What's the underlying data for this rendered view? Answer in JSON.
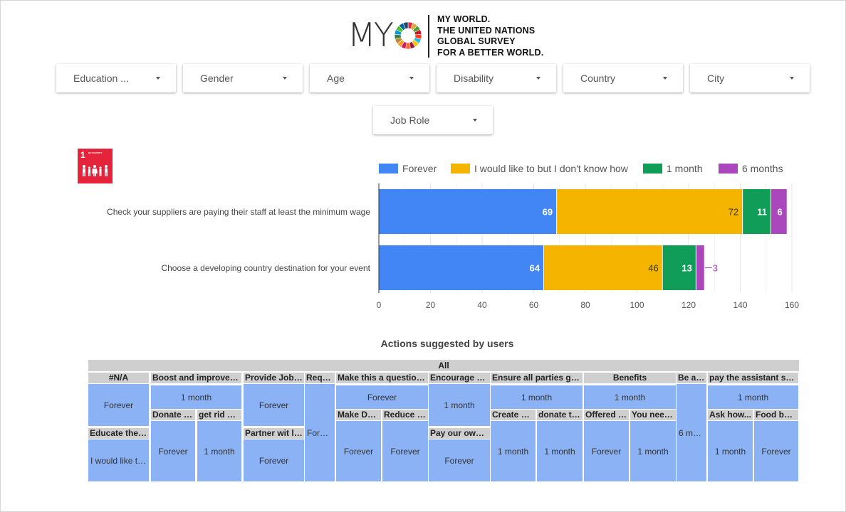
{
  "logo": {
    "wordmark": "MY",
    "tagline": [
      "MY WORLD.",
      "THE UNITED NATIONS",
      "GLOBAL SURVEY",
      "FOR A BETTER WORLD."
    ]
  },
  "filters": [
    {
      "label": "Education ..."
    },
    {
      "label": "Gender"
    },
    {
      "label": "Age"
    },
    {
      "label": "Disability"
    },
    {
      "label": "Country"
    },
    {
      "label": "City"
    },
    {
      "label": "Job Role"
    }
  ],
  "sdg": {
    "number": "1",
    "sub": "NO POVERTY",
    "color": "#e5243b"
  },
  "chart_data": {
    "type": "bar",
    "orientation": "horizontal",
    "stacked": true,
    "categories": [
      "Check your suppliers are paying their staff at least the minimum wage",
      "Choose a developing country destination for your event"
    ],
    "series": [
      {
        "name": "Forever",
        "color": "#4285f4",
        "values": [
          69,
          64
        ]
      },
      {
        "name": "I would like to but I don't know how",
        "color": "#f4b400",
        "values": [
          72,
          46
        ]
      },
      {
        "name": "1 month",
        "color": "#0f9d58",
        "values": [
          11,
          13
        ]
      },
      {
        "name": "6 months",
        "color": "#ab47bc",
        "values": [
          6,
          3
        ]
      }
    ],
    "xlim": [
      0,
      160
    ],
    "xticks": [
      0,
      20,
      40,
      60,
      80,
      100,
      120,
      140,
      160
    ],
    "legend": "top",
    "grid": true
  },
  "table": {
    "title": "Actions suggested by users",
    "root": "All",
    "nodes": [
      {
        "label": "#N/A",
        "kind": "h"
      },
      {
        "label": "Forever",
        "kind": "c"
      },
      {
        "label": "Educate the e...",
        "kind": "h"
      },
      {
        "label": "I would like to...",
        "kind": "c"
      },
      {
        "label": "Boost and improve Ed...",
        "kind": "h"
      },
      {
        "label": "1 month",
        "kind": "c"
      },
      {
        "label": "Donate m...",
        "kind": "h"
      },
      {
        "label": "Forever",
        "kind": "c"
      },
      {
        "label": "get rid of...",
        "kind": "h"
      },
      {
        "label": "1 month",
        "kind": "c"
      },
      {
        "label": "Provide Job o...",
        "kind": "h"
      },
      {
        "label": "Forever",
        "kind": "c"
      },
      {
        "label": "Partner wit loc...",
        "kind": "h"
      },
      {
        "label": "Forever",
        "kind": "c"
      },
      {
        "label": "Reque...",
        "kind": "h"
      },
      {
        "label": "Forever",
        "kind": "c"
      },
      {
        "label": "Make this a question w...",
        "kind": "h"
      },
      {
        "label": "Forever",
        "kind": "c"
      },
      {
        "label": "Make Don...",
        "kind": "h"
      },
      {
        "label": "Forever",
        "kind": "c"
      },
      {
        "label": "Reduce or...",
        "kind": "h"
      },
      {
        "label": "Forever",
        "kind": "c"
      },
      {
        "label": "Encourage clie...",
        "kind": "h"
      },
      {
        "label": "1 month",
        "kind": "c"
      },
      {
        "label": "Pay our own st...",
        "kind": "h"
      },
      {
        "label": "Forever",
        "kind": "c"
      },
      {
        "label": "Ensure all parties get e...",
        "kind": "h"
      },
      {
        "label": "1 month",
        "kind": "c"
      },
      {
        "label": "Create a c...",
        "kind": "h"
      },
      {
        "label": "1 month",
        "kind": "c"
      },
      {
        "label": "donate to...",
        "kind": "h"
      },
      {
        "label": "1 month",
        "kind": "c"
      },
      {
        "label": "Benefits",
        "kind": "h"
      },
      {
        "label": "1 month",
        "kind": "c"
      },
      {
        "label": "Offered w...",
        "kind": "h"
      },
      {
        "label": "Forever",
        "kind": "c"
      },
      {
        "label": "You need t...",
        "kind": "h"
      },
      {
        "label": "1 month",
        "kind": "c"
      },
      {
        "label": "Be aw...",
        "kind": "h"
      },
      {
        "label": "6 mon...",
        "kind": "c"
      },
      {
        "label": "pay the assistant staff...",
        "kind": "h"
      },
      {
        "label": "1 month",
        "kind": "c"
      },
      {
        "label": "Ask how...",
        "kind": "h"
      },
      {
        "label": "1 month",
        "kind": "c"
      },
      {
        "label": "Food bank...",
        "kind": "h"
      },
      {
        "label": "Forever",
        "kind": "c"
      }
    ]
  }
}
